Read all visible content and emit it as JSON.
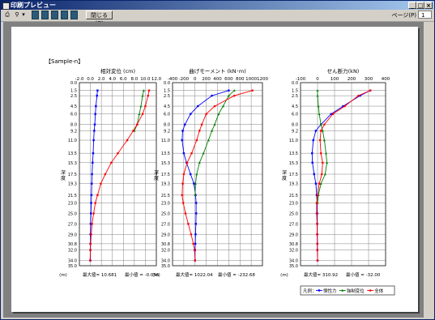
{
  "window": {
    "title": "印刷プレビュー"
  },
  "toolbar": {
    "close_label": "閉じる(C)",
    "page_label": "ページ(P)",
    "page_value": "1"
  },
  "page": {
    "sample_label": "【Sample-n】"
  },
  "depths": [
    "0.0",
    "1.5",
    "2.5",
    "4.5",
    "6.0",
    "8.0",
    "9.2",
    "11.0",
    "13.5",
    "15.3",
    "17.5",
    "19.3",
    "21.5",
    "23.0",
    "25.0",
    "27.0",
    "29.0",
    "30.8",
    "32.0",
    "34.0",
    "35.0"
  ],
  "axis": {
    "depth_label": "深度",
    "unit_label": "(m)"
  },
  "chart_data": [
    {
      "type": "line",
      "title": "相対変位 (cm)",
      "x_ticks": [
        "-2.0",
        "0.0",
        "2.0",
        "4.0",
        "6.0",
        "8.0",
        "10.0",
        "12.0"
      ],
      "xlim": [
        -2,
        12
      ],
      "ylim": [
        0,
        35
      ],
      "max_label": "最大値= 10.681",
      "min_label": "最小値 = -0.056",
      "series": [
        {
          "key": "kansei",
          "color": "#0000ff",
          "points": [
            [
              1.3,
              1.5
            ],
            [
              1.2,
              2.5
            ],
            [
              1.0,
              4.5
            ],
            [
              0.9,
              6.0
            ],
            [
              0.8,
              8.0
            ],
            [
              0.7,
              9.2
            ],
            [
              0.6,
              11.0
            ],
            [
              0.5,
              13.5
            ],
            [
              0.4,
              15.3
            ],
            [
              0.3,
              17.5
            ],
            [
              0.25,
              19.3
            ],
            [
              0.2,
              21.5
            ],
            [
              0.15,
              23.0
            ],
            [
              0.1,
              25.0
            ],
            [
              0.05,
              27.0
            ],
            [
              0.02,
              29.0
            ],
            [
              0.0,
              30.8
            ],
            [
              0.0,
              32.0
            ],
            [
              0.0,
              34.0
            ]
          ]
        },
        {
          "key": "kyosei",
          "color": "#008000",
          "points": [
            [
              9.7,
              1.5
            ],
            [
              9.5,
              2.5
            ],
            [
              9.2,
              4.5
            ],
            [
              8.9,
              6.0
            ],
            [
              8.5,
              8.0
            ],
            [
              8.0,
              9.2
            ]
          ]
        },
        {
          "key": "zentai",
          "color": "#ff0000",
          "points": [
            [
              10.68,
              1.5
            ],
            [
              10.5,
              2.5
            ],
            [
              10.0,
              4.5
            ],
            [
              9.5,
              6.0
            ],
            [
              8.5,
              8.0
            ],
            [
              7.8,
              9.2
            ],
            [
              6.7,
              11.0
            ],
            [
              5.0,
              13.5
            ],
            [
              3.8,
              15.3
            ],
            [
              2.7,
              17.5
            ],
            [
              1.9,
              19.3
            ],
            [
              1.3,
              21.5
            ],
            [
              0.9,
              23.0
            ],
            [
              0.6,
              25.0
            ],
            [
              0.3,
              27.0
            ],
            [
              0.15,
              29.0
            ],
            [
              0.05,
              30.8
            ],
            [
              0.0,
              32.0
            ],
            [
              -0.05,
              34.0
            ]
          ]
        }
      ]
    },
    {
      "type": "line",
      "title": "曲げモーメント (kN･m)",
      "x_ticks": [
        "-400",
        "-200",
        "0",
        "200",
        "400",
        "600",
        "800",
        "1000",
        "1200"
      ],
      "xlim": [
        -400,
        1200
      ],
      "ylim": [
        0,
        35
      ],
      "max_label": "最大値= 1022.04",
      "min_label": "最小値 = -232.68",
      "series": [
        {
          "key": "kansei",
          "color": "#0000ff",
          "points": [
            [
              600,
              1.5
            ],
            [
              300,
              2.5
            ],
            [
              50,
              4.5
            ],
            [
              -80,
              6.0
            ],
            [
              -180,
              8.0
            ],
            [
              -220,
              9.2
            ],
            [
              -230,
              11.0
            ],
            [
              -200,
              13.5
            ],
            [
              -150,
              15.3
            ],
            [
              -80,
              17.5
            ],
            [
              -20,
              19.3
            ],
            [
              10,
              21.5
            ],
            [
              20,
              23.0
            ],
            [
              20,
              25.0
            ],
            [
              15,
              27.0
            ],
            [
              10,
              29.0
            ],
            [
              5,
              30.8
            ],
            [
              0,
              32.0
            ],
            [
              0,
              34.0
            ]
          ]
        },
        {
          "key": "kyosei",
          "color": "#008000",
          "points": [
            [
              700,
              1.5
            ],
            [
              600,
              2.5
            ],
            [
              500,
              4.5
            ],
            [
              420,
              6.0
            ],
            [
              350,
              8.0
            ],
            [
              300,
              9.2
            ],
            [
              240,
              11.0
            ],
            [
              150,
              13.5
            ],
            [
              80,
              15.3
            ],
            [
              30,
              17.5
            ],
            [
              10,
              19.3
            ],
            [
              0,
              21.5
            ]
          ]
        },
        {
          "key": "zentai",
          "color": "#ff0000",
          "points": [
            [
              1022,
              1.5
            ],
            [
              700,
              2.5
            ],
            [
              350,
              4.5
            ],
            [
              200,
              6.0
            ],
            [
              120,
              8.0
            ],
            [
              80,
              9.2
            ],
            [
              30,
              11.0
            ],
            [
              -60,
              13.5
            ],
            [
              -140,
              15.3
            ],
            [
              -200,
              17.5
            ],
            [
              -220,
              19.3
            ],
            [
              -230,
              21.5
            ],
            [
              -210,
              23.0
            ],
            [
              -170,
              25.0
            ],
            [
              -120,
              27.0
            ],
            [
              -70,
              29.0
            ],
            [
              -30,
              30.8
            ],
            [
              -10,
              32.0
            ],
            [
              0,
              34.0
            ]
          ]
        }
      ]
    },
    {
      "type": "line",
      "title": "せん断力(kN)",
      "x_ticks": [
        "-100",
        "0",
        "100",
        "200",
        "300",
        "400"
      ],
      "xlim": [
        -100,
        400
      ],
      "ylim": [
        0,
        35
      ],
      "max_label": "最大値= 310.92",
      "min_label": "最小値 = -32.00",
      "series": [
        {
          "key": "kansei",
          "color": "#0000ff",
          "points": [
            [
              310,
              1.5
            ],
            [
              250,
              2.5
            ],
            [
              150,
              4.5
            ],
            [
              80,
              6.0
            ],
            [
              20,
              8.0
            ],
            [
              -10,
              9.2
            ],
            [
              -25,
              11.0
            ],
            [
              -32,
              13.5
            ],
            [
              -30,
              15.3
            ],
            [
              -20,
              17.5
            ],
            [
              -10,
              19.3
            ],
            [
              -5,
              21.5
            ],
            [
              -3,
              23.0
            ],
            [
              -2,
              25.0
            ],
            [
              -2,
              27.0
            ],
            [
              -2,
              29.0
            ],
            [
              -1,
              30.8
            ],
            [
              -1,
              32.0
            ],
            [
              0,
              34.0
            ]
          ]
        },
        {
          "key": "kyosei",
          "color": "#008000",
          "points": [
            [
              0,
              1.5
            ],
            [
              0,
              2.5
            ],
            [
              5,
              4.5
            ],
            [
              10,
              6.0
            ],
            [
              20,
              8.0
            ],
            [
              30,
              9.2
            ],
            [
              40,
              11.0
            ],
            [
              50,
              13.5
            ],
            [
              55,
              15.3
            ],
            [
              45,
              17.5
            ],
            [
              20,
              19.3
            ],
            [
              5,
              21.5
            ],
            [
              0,
              23.0
            ]
          ]
        },
        {
          "key": "zentai",
          "color": "#ff0000",
          "points": [
            [
              310,
              1.5
            ],
            [
              240,
              2.5
            ],
            [
              160,
              4.5
            ],
            [
              90,
              6.0
            ],
            [
              40,
              8.0
            ],
            [
              20,
              9.2
            ],
            [
              15,
              11.0
            ],
            [
              20,
              13.5
            ],
            [
              30,
              15.3
            ],
            [
              25,
              17.5
            ],
            [
              10,
              19.3
            ],
            [
              0,
              21.5
            ],
            [
              -5,
              23.0
            ],
            [
              -5,
              25.0
            ],
            [
              -3,
              27.0
            ],
            [
              -2,
              29.0
            ],
            [
              -1,
              30.8
            ],
            [
              -1,
              32.0
            ],
            [
              0,
              34.0
            ]
          ]
        }
      ]
    }
  ],
  "legend": {
    "prefix": "凡例：",
    "items": [
      {
        "key": "kansei",
        "label": "慣性力",
        "color": "#0000ff"
      },
      {
        "key": "kyosei",
        "label": "強制変位",
        "color": "#008000"
      },
      {
        "key": "zentai",
        "label": "全体",
        "color": "#ff0000"
      }
    ]
  }
}
